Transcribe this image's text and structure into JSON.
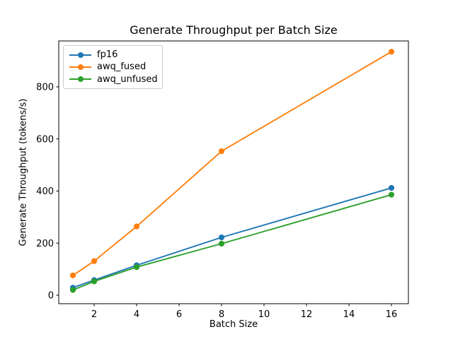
{
  "chart_data": {
    "type": "line",
    "title": "Generate Throughput per Batch Size",
    "xlabel": "Batch Size",
    "ylabel": "Generate Throughput (tokens/s)",
    "x": [
      1,
      2,
      4,
      8,
      16
    ],
    "series": [
      {
        "name": "fp16",
        "color": "#1f77b4",
        "marker": "o",
        "values": [
          29,
          58,
          115,
          222,
          412
        ]
      },
      {
        "name": "awq_fused",
        "color": "#ff7f0e",
        "marker": "o",
        "values": [
          76,
          131,
          264,
          553,
          935
        ]
      },
      {
        "name": "awq_unfused",
        "color": "#2ca02c",
        "marker": "o",
        "values": [
          20,
          53,
          108,
          198,
          386
        ]
      }
    ],
    "x_ticks": [
      2,
      4,
      6,
      8,
      10,
      12,
      14,
      16
    ],
    "y_ticks": [
      0,
      200,
      400,
      600,
      800
    ],
    "xlim": [
      0.25,
      16.75
    ],
    "ylim": [
      -32,
      976
    ],
    "grid": false,
    "legend_position": "upper left",
    "axis_color": "#000000",
    "background_color": "#ffffff"
  }
}
